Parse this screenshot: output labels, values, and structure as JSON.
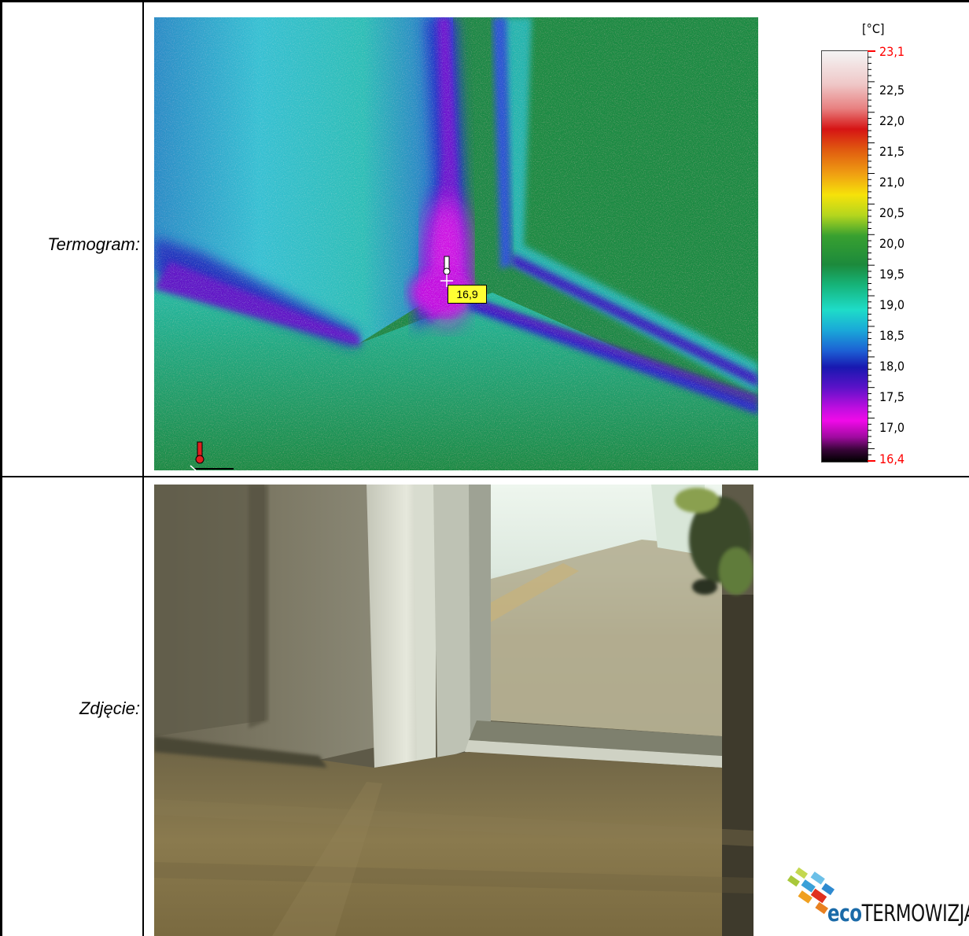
{
  "rows": {
    "thermogram_label": "Termogram:",
    "photo_label": "Zdjęcie:"
  },
  "thermogram": {
    "spot_value": "16,9"
  },
  "scale": {
    "unit": "[°C]",
    "max": "23,1",
    "min": "16,4",
    "labels": [
      "22,5",
      "22,0",
      "21,5",
      "21,0",
      "20,5",
      "20,0",
      "19,5",
      "19,0",
      "18,5",
      "18,0",
      "17,5",
      "17,0"
    ]
  },
  "logo": {
    "prefix": "eco",
    "name": "TERMOWIZJA"
  },
  "colors": {
    "scale_extreme_text": "#ff0000",
    "spot_box": "#ffff33"
  }
}
